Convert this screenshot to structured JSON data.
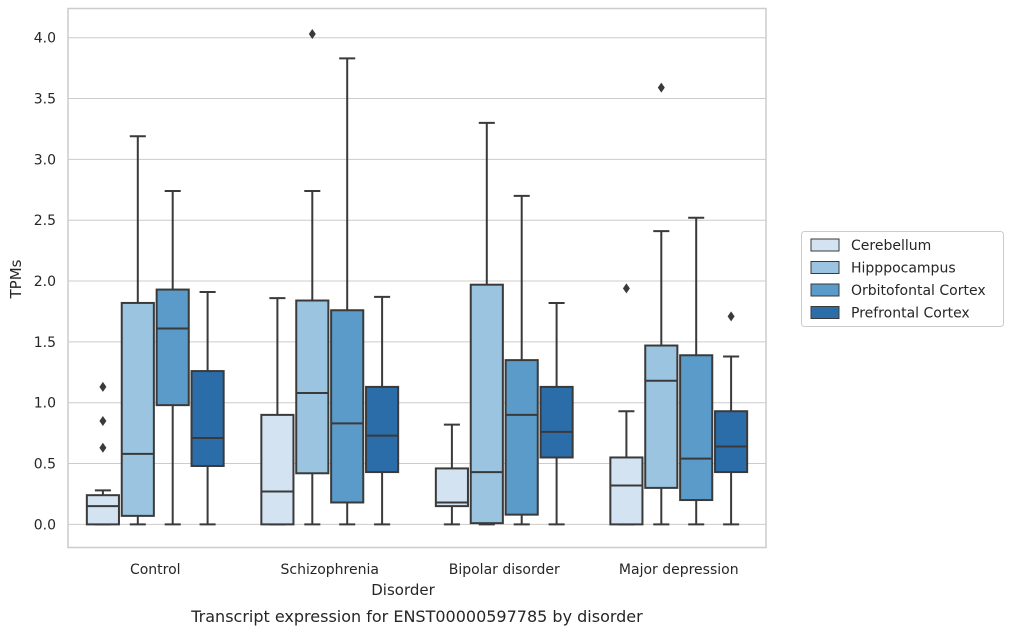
{
  "chart_data": {
    "type": "box",
    "title": "",
    "caption": "Transcript expression for ENST00000597785 by disorder",
    "xlabel": "Disorder",
    "ylabel": "TPMs",
    "ylim": [
      -0.19,
      4.24
    ],
    "yticks": [
      "0.0",
      "0.5",
      "1.0",
      "1.5",
      "2.0",
      "2.5",
      "3.0",
      "3.5",
      "4.0"
    ],
    "ytick_values": [
      0,
      0.5,
      1.0,
      1.5,
      2.0,
      2.5,
      3.0,
      3.5,
      4.0
    ],
    "grid": true,
    "legend_position": "right",
    "categories": [
      "Control",
      "Schizophrenia",
      "Bipolar disorder",
      "Major depression"
    ],
    "series": [
      {
        "name": "Cerebellum",
        "color": "#d3e3f2",
        "boxes": [
          {
            "whislo": 0.0,
            "q1": 0.0,
            "med": 0.15,
            "q3": 0.24,
            "whishi": 0.28,
            "fliers": [
              0.63,
              0.85,
              1.13
            ]
          },
          {
            "whislo": 0.0,
            "q1": 0.0,
            "med": 0.27,
            "q3": 0.9,
            "whishi": 1.86,
            "fliers": []
          },
          {
            "whislo": 0.0,
            "q1": 0.15,
            "med": 0.18,
            "q3": 0.46,
            "whishi": 0.82,
            "fliers": []
          },
          {
            "whislo": 0.0,
            "q1": 0.0,
            "med": 0.32,
            "q3": 0.55,
            "whishi": 0.93,
            "fliers": [
              1.94
            ]
          }
        ]
      },
      {
        "name": "Hipppocampus",
        "color": "#9ac4df",
        "boxes": [
          {
            "whislo": 0.0,
            "q1": 0.07,
            "med": 0.58,
            "q3": 1.82,
            "whishi": 3.19,
            "fliers": []
          },
          {
            "whislo": 0.0,
            "q1": 0.42,
            "med": 1.08,
            "q3": 1.84,
            "whishi": 2.74,
            "fliers": [
              4.03
            ]
          },
          {
            "whislo": 0.0,
            "q1": 0.01,
            "med": 0.43,
            "q3": 1.97,
            "whishi": 3.3,
            "fliers": []
          },
          {
            "whislo": 0.0,
            "q1": 0.3,
            "med": 1.18,
            "q3": 1.47,
            "whishi": 2.41,
            "fliers": [
              3.59
            ]
          }
        ]
      },
      {
        "name": "Orbitofontal Cortex",
        "color": "#5a9bc9",
        "boxes": [
          {
            "whislo": 0.0,
            "q1": 0.98,
            "med": 1.61,
            "q3": 1.93,
            "whishi": 2.74,
            "fliers": []
          },
          {
            "whislo": 0.0,
            "q1": 0.18,
            "med": 0.83,
            "q3": 1.76,
            "whishi": 3.83,
            "fliers": []
          },
          {
            "whislo": 0.0,
            "q1": 0.08,
            "med": 0.9,
            "q3": 1.35,
            "whishi": 2.7,
            "fliers": []
          },
          {
            "whislo": 0.0,
            "q1": 0.2,
            "med": 0.54,
            "q3": 1.39,
            "whishi": 2.52,
            "fliers": []
          }
        ]
      },
      {
        "name": "Prefrontal Cortex",
        "color": "#2b6da8",
        "boxes": [
          {
            "whislo": 0.0,
            "q1": 0.48,
            "med": 0.71,
            "q3": 1.26,
            "whishi": 1.91,
            "fliers": []
          },
          {
            "whislo": 0.0,
            "q1": 0.43,
            "med": 0.73,
            "q3": 1.13,
            "whishi": 1.87,
            "fliers": []
          },
          {
            "whislo": 0.0,
            "q1": 0.55,
            "med": 0.76,
            "q3": 1.13,
            "whishi": 1.82,
            "fliers": []
          },
          {
            "whislo": 0.0,
            "q1": 0.43,
            "med": 0.64,
            "q3": 0.93,
            "whishi": 1.38,
            "fliers": [
              1.71
            ]
          }
        ]
      }
    ]
  }
}
